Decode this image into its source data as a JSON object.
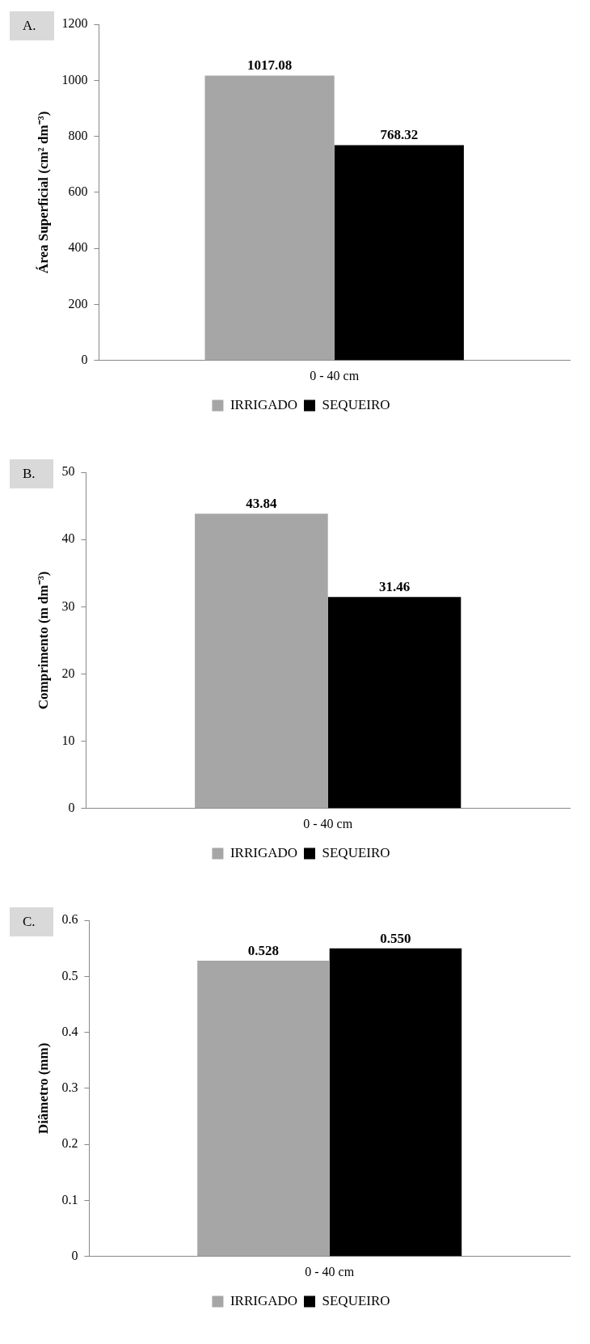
{
  "chart_data": [
    {
      "type": "bar",
      "title": "A.",
      "ylabel": "Área Superficial (cm² dm⁻³)",
      "categories": [
        "0 - 40 cm"
      ],
      "series": [
        {
          "name": "IRRIGADO",
          "color": "#a6a6a6",
          "values": [
            1017.08
          ]
        },
        {
          "name": "SEQUEIRO",
          "color": "#000000",
          "values": [
            768.32
          ]
        }
      ],
      "ylim": [
        0,
        1200
      ],
      "yticks": [
        0,
        200,
        400,
        600,
        800,
        1000,
        1200
      ],
      "grid": false,
      "legend": "bottom",
      "data_labels": true
    },
    {
      "type": "bar",
      "title": "B.",
      "ylabel": "Comprimento (m dm⁻³)",
      "categories": [
        "0 - 40 cm"
      ],
      "series": [
        {
          "name": "IRRIGADO",
          "color": "#a6a6a6",
          "values": [
            43.84
          ]
        },
        {
          "name": "SEQUEIRO",
          "color": "#000000",
          "values": [
            31.46
          ]
        }
      ],
      "ylim": [
        0,
        50
      ],
      "yticks": [
        0,
        10,
        20,
        30,
        40,
        50
      ],
      "grid": false,
      "legend": "bottom",
      "data_labels": true
    },
    {
      "type": "bar",
      "title": "C.",
      "ylabel": "Diâmetro (mm)",
      "categories": [
        "0 - 40 cm"
      ],
      "series": [
        {
          "name": "IRRIGADO",
          "color": "#a6a6a6",
          "values": [
            0.528
          ],
          "value_labels": [
            "0.528"
          ]
        },
        {
          "name": "SEQUEIRO",
          "color": "#000000",
          "values": [
            0.55
          ],
          "value_labels": [
            "0.550"
          ]
        }
      ],
      "ylim": [
        0,
        0.6
      ],
      "yticks": [
        0,
        0.1,
        0.2,
        0.3,
        0.4,
        0.5,
        0.6
      ],
      "grid": false,
      "legend": "bottom"
    }
  ]
}
